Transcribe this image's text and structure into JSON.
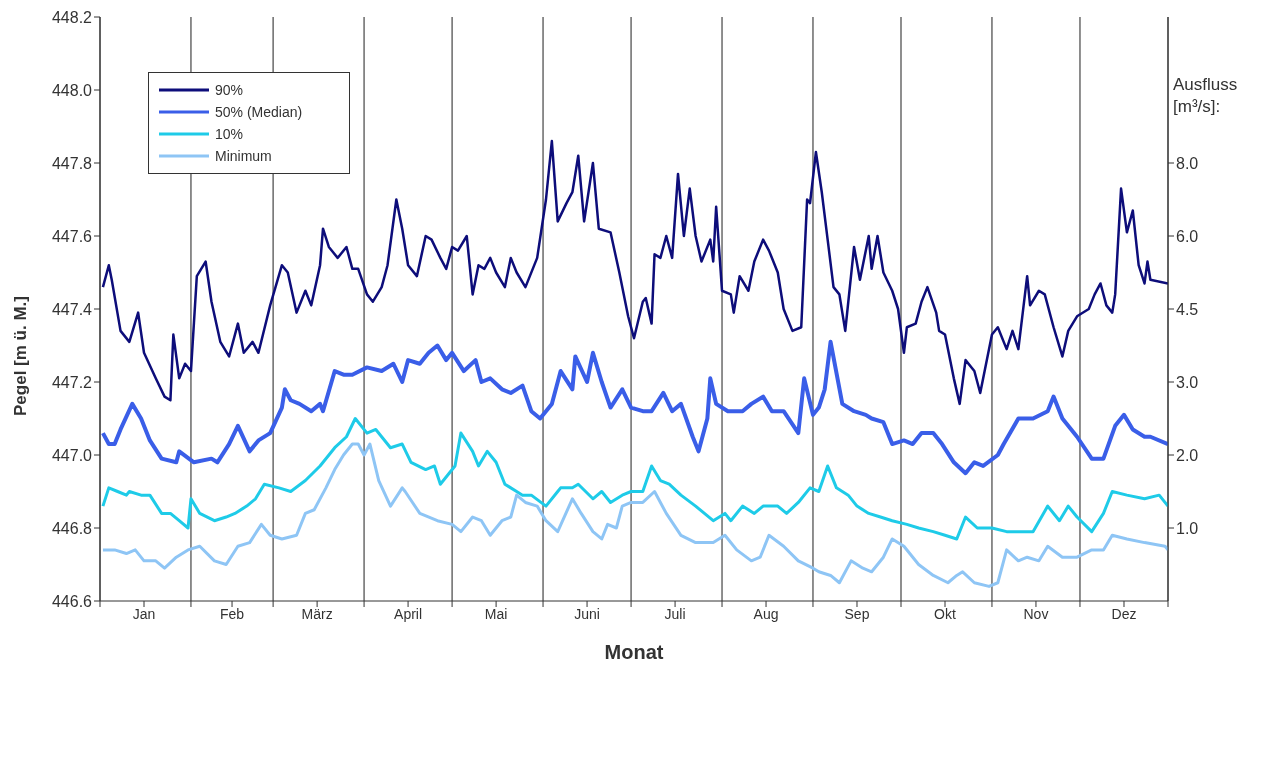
{
  "chart_data": {
    "type": "line",
    "xlabel": "Monat",
    "ylabel": "Pegel [m ü. M.]",
    "y2label": "Ausfluss [m³/s]:",
    "xlim": [
      "--01-01",
      "--12-31"
    ],
    "xticks": [
      {
        "value": "--01-01",
        "label": null
      },
      {
        "value": "--01-16",
        "label": "Jan"
      },
      {
        "value": "--02-01",
        "label": null
      },
      {
        "value": "--02-15",
        "label": "Feb"
      },
      {
        "value": "--03-01",
        "label": null
      },
      {
        "value": "--03-16",
        "label": "März"
      },
      {
        "value": "--04-01",
        "label": null
      },
      {
        "value": "--04-16",
        "label": "April"
      },
      {
        "value": "--05-01",
        "label": null
      },
      {
        "value": "--05-16",
        "label": "Mai"
      },
      {
        "value": "--06-01",
        "label": null
      },
      {
        "value": "--06-16",
        "label": "Juni"
      },
      {
        "value": "--07-01",
        "label": null
      },
      {
        "value": "--07-16",
        "label": "Juli"
      },
      {
        "value": "--08-01",
        "label": null
      },
      {
        "value": "--08-16",
        "label": "Aug"
      },
      {
        "value": "--09-01",
        "label": null
      },
      {
        "value": "--09-16",
        "label": "Sep"
      },
      {
        "value": "--10-01",
        "label": null
      },
      {
        "value": "--10-16",
        "label": "Okt"
      },
      {
        "value": "--11-01",
        "label": null
      },
      {
        "value": "--11-16",
        "label": "Nov"
      },
      {
        "value": "--12-01",
        "label": null
      },
      {
        "value": "--12-16",
        "label": "Dez"
      },
      {
        "value": "--12-31",
        "label": null
      }
    ],
    "ylim": [
      446.6,
      448.2
    ],
    "yticks": [
      446.6,
      446.8,
      {
        "value": 447,
        "label": "447.0"
      },
      447.2,
      447.4,
      447.6,
      447.8,
      {
        "value": 448,
        "label": "448.0"
      },
      448.2
    ],
    "annotations": [
      "1.0",
      "2.0",
      "3.0",
      "4.5",
      "6.0",
      "8.0"
    ],
    "grid": true,
    "legend": "top left",
    "series": [
      {
        "name": "90%",
        "color": "#0d0d7a",
        "x": [
          "--01-02",
          "--01-04",
          "--01-05",
          "--01-08",
          "--01-11",
          "--01-14",
          "--01-16",
          "--01-20",
          "--01-23",
          "--01-25",
          "--01-26",
          "--01-28",
          "--01-30",
          "--02-01",
          "--02-03",
          "--02-06",
          "--02-08",
          "--02-11",
          "--02-14",
          "--02-17",
          "--02-19",
          "--02-22",
          "--02-24",
          "--02-28",
          "--03-04",
          "--03-06",
          "--03-09",
          "--03-12",
          "--03-14",
          "--03-17",
          "--03-18",
          "--03-20",
          "--03-23",
          "--03-26",
          "--03-28",
          "--03-30",
          "--04-02",
          "--04-04",
          "--04-07",
          "--04-09",
          "--04-12",
          "--04-14",
          "--04-16",
          "--04-19",
          "--04-22",
          "--04-24",
          "--04-27",
          "--04-29",
          "--05-01",
          "--05-03",
          "--05-06",
          "--05-08",
          "--05-10",
          "--05-12",
          "--05-14",
          "--05-16",
          "--05-19",
          "--05-21",
          "--05-23",
          "--05-26",
          "--05-30",
          "--06-02",
          "--06-04",
          "--06-06",
          "--06-09",
          "--06-11",
          "--06-13",
          "--06-15",
          "--06-18",
          "--06-20",
          "--06-24",
          "--06-27",
          "--06-30",
          "--07-02",
          "--07-05",
          "--07-06",
          "--07-08",
          "--07-09",
          "--07-11",
          "--07-13",
          "--07-15",
          "--07-17",
          "--07-19",
          "--07-21",
          "--07-23",
          "--07-25",
          "--07-28",
          "--07-29",
          "--07-30",
          "--08-01",
          "--08-04",
          "--08-05",
          "--08-07",
          "--08-10",
          "--08-12",
          "--08-15",
          "--08-17",
          "--08-20",
          "--08-22",
          "--08-25",
          "--08-28",
          "--08-30",
          "--08-31",
          "--09-02",
          "--09-04",
          "--09-06",
          "--09-08",
          "--09-10",
          "--09-12",
          "--09-15",
          "--09-17",
          "--09-20",
          "--09-21",
          "--09-23",
          "--09-25",
          "--09-28",
          "--09-30",
          "--10-02",
          "--10-03",
          "--10-06",
          "--10-08",
          "--10-10",
          "--10-13",
          "--10-14",
          "--10-16",
          "--10-19",
          "--10-21",
          "--10-23",
          "--10-26",
          "--10-28",
          "--11-01",
          "--11-03",
          "--11-06",
          "--11-08",
          "--11-10",
          "--11-13",
          "--11-14",
          "--11-17",
          "--11-19",
          "--11-22",
          "--11-25",
          "--11-27",
          "--11-30",
          "--12-04",
          "--12-06",
          "--12-08",
          "--12-10",
          "--12-12",
          "--12-13",
          "--12-15",
          "--12-17",
          "--12-19",
          "--12-21",
          "--12-23",
          "--12-24",
          "--12-25",
          "--12-31"
        ],
        "values": [
          447.46,
          447.52,
          447.48,
          447.34,
          447.31,
          447.39,
          447.28,
          447.21,
          447.16,
          447.15,
          447.33,
          447.21,
          447.25,
          447.23,
          447.49,
          447.53,
          447.42,
          447.31,
          447.27,
          447.36,
          447.28,
          447.31,
          447.28,
          447.41,
          447.52,
          447.5,
          447.39,
          447.45,
          447.41,
          447.52,
          447.62,
          447.57,
          447.54,
          447.57,
          447.51,
          447.51,
          447.44,
          447.42,
          447.46,
          447.52,
          447.7,
          447.62,
          447.52,
          447.49,
          447.6,
          447.59,
          447.54,
          447.51,
          447.57,
          447.56,
          447.6,
          447.44,
          447.52,
          447.51,
          447.54,
          447.5,
          447.46,
          447.54,
          447.5,
          447.46,
          447.54,
          447.7,
          447.86,
          447.64,
          447.69,
          447.72,
          447.82,
          447.64,
          447.8,
          447.62,
          447.61,
          447.5,
          447.38,
          447.32,
          447.42,
          447.43,
          447.36,
          447.55,
          447.54,
          447.6,
          447.54,
          447.77,
          447.6,
          447.73,
          447.6,
          447.53,
          447.59,
          447.53,
          447.68,
          447.45,
          447.44,
          447.39,
          447.49,
          447.45,
          447.53,
          447.59,
          447.56,
          447.5,
          447.4,
          447.34,
          447.35,
          447.7,
          447.69,
          447.83,
          447.72,
          447.59,
          447.46,
          447.44,
          447.34,
          447.57,
          447.48,
          447.6,
          447.51,
          447.6,
          447.5,
          447.45,
          447.4,
          447.28,
          447.35,
          447.36,
          447.42,
          447.46,
          447.39,
          447.34,
          447.33,
          447.21,
          447.14,
          447.26,
          447.23,
          447.17,
          447.33,
          447.35,
          447.29,
          447.34,
          447.29,
          447.49,
          447.41,
          447.45,
          447.44,
          447.35,
          447.27,
          447.34,
          447.38,
          447.4,
          447.44,
          447.47,
          447.41,
          447.39,
          447.44,
          447.73,
          447.61,
          447.67,
          447.52,
          447.47,
          447.53,
          447.48,
          447.47
        ]
      },
      {
        "name": "50% (Median)",
        "color": "#3a5ee8",
        "x": [
          "--01-02",
          "--01-04",
          "--01-06",
          "--01-08",
          "--01-12",
          "--01-15",
          "--01-18",
          "--01-22",
          "--01-27",
          "--01-28",
          "--02-02",
          "--02-08",
          "--02-10",
          "--02-14",
          "--02-17",
          "--02-21",
          "--02-24",
          "--02-28",
          "--03-04",
          "--03-05",
          "--03-07",
          "--03-10",
          "--03-14",
          "--03-17",
          "--03-18",
          "--03-22",
          "--03-25",
          "--03-28",
          "--04-02",
          "--04-07",
          "--04-11",
          "--04-14",
          "--04-16",
          "--04-20",
          "--04-23",
          "--04-26",
          "--04-29",
          "--05-01",
          "--05-05",
          "--05-09",
          "--05-11",
          "--05-14",
          "--05-18",
          "--05-21",
          "--05-25",
          "--05-28",
          "--05-31",
          "--06-04",
          "--06-07",
          "--06-11",
          "--06-12",
          "--06-16",
          "--06-18",
          "--06-21",
          "--06-24",
          "--06-28",
          "--07-01",
          "--07-05",
          "--07-08",
          "--07-12",
          "--07-15",
          "--07-18",
          "--07-22",
          "--07-24",
          "--07-27",
          "--07-28",
          "--07-30",
          "--08-03",
          "--08-08",
          "--08-11",
          "--08-15",
          "--08-18",
          "--08-22",
          "--08-27",
          "--08-29",
          "--09-01",
          "--09-03",
          "--09-05",
          "--09-07",
          "--09-11",
          "--09-15",
          "--09-19",
          "--09-21",
          "--09-25",
          "--09-28",
          "--10-02",
          "--10-05",
          "--10-08",
          "--10-12",
          "--10-15",
          "--10-19",
          "--10-23",
          "--10-26",
          "--10-29",
          "--11-03",
          "--11-05",
          "--11-10",
          "--11-15",
          "--11-20",
          "--11-22",
          "--11-25",
          "--11-30",
          "--12-05",
          "--12-09",
          "--12-13",
          "--12-16",
          "--12-19",
          "--12-23",
          "--12-25",
          "--12-31"
        ],
        "values": [
          447.06,
          447.03,
          447.03,
          447.07,
          447.14,
          447.1,
          447.04,
          446.99,
          446.98,
          447.01,
          446.98,
          446.99,
          446.98,
          447.03,
          447.08,
          447.01,
          447.04,
          447.06,
          447.13,
          447.18,
          447.15,
          447.14,
          447.12,
          447.14,
          447.12,
          447.23,
          447.22,
          447.22,
          447.24,
          447.23,
          447.25,
          447.2,
          447.26,
          447.25,
          447.28,
          447.3,
          447.26,
          447.28,
          447.23,
          447.26,
          447.2,
          447.21,
          447.18,
          447.17,
          447.19,
          447.12,
          447.1,
          447.14,
          447.23,
          447.18,
          447.27,
          447.2,
          447.28,
          447.2,
          447.13,
          447.18,
          447.13,
          447.12,
          447.12,
          447.17,
          447.12,
          447.14,
          447.05,
          447.01,
          447.1,
          447.21,
          447.14,
          447.12,
          447.12,
          447.14,
          447.16,
          447.12,
          447.12,
          447.06,
          447.21,
          447.11,
          447.13,
          447.18,
          447.31,
          447.14,
          447.12,
          447.11,
          447.1,
          447.09,
          447.03,
          447.04,
          447.03,
          447.06,
          447.06,
          447.03,
          446.98,
          446.95,
          446.98,
          446.97,
          447,
          447.03,
          447.1,
          447.1,
          447.12,
          447.16,
          447.1,
          447.05,
          446.99,
          446.99,
          447.08,
          447.11,
          447.07,
          447.05,
          447.05,
          447.03
        ]
      },
      {
        "name": "10%",
        "color": "#1ecbe8",
        "x": [
          "--01-02",
          "--01-04",
          "--01-07",
          "--01-10",
          "--01-11",
          "--01-15",
          "--01-18",
          "--01-22",
          "--01-25",
          "--01-28",
          "--01-31",
          "--02-01",
          "--02-04",
          "--02-09",
          "--02-13",
          "--02-16",
          "--02-20",
          "--02-23",
          "--02-26",
          "--03-03",
          "--03-07",
          "--03-12",
          "--03-17",
          "--03-22",
          "--03-26",
          "--03-29",
          "--04-02",
          "--04-05",
          "--04-10",
          "--04-14",
          "--04-17",
          "--04-22",
          "--04-25",
          "--04-27",
          "--04-30",
          "--05-02",
          "--05-04",
          "--05-08",
          "--05-10",
          "--05-13",
          "--05-16",
          "--05-19",
          "--05-23",
          "--05-25",
          "--05-28",
          "--06-02",
          "--06-06",
          "--06-07",
          "--06-11",
          "--06-13",
          "--06-18",
          "--06-21",
          "--06-24",
          "--06-28",
          "--07-01",
          "--07-05",
          "--07-08",
          "--07-11",
          "--07-14",
          "--07-18",
          "--07-23",
          "--07-29",
          "--08-02",
          "--08-04",
          "--08-08",
          "--08-12",
          "--08-15",
          "--08-20",
          "--08-23",
          "--08-27",
          "--08-31",
          "--09-03",
          "--09-06",
          "--09-09",
          "--09-13",
          "--09-16",
          "--09-20",
          "--09-24",
          "--09-28",
          "--10-03",
          "--10-07",
          "--10-12",
          "--10-16",
          "--10-20",
          "--10-23",
          "--10-27",
          "--11-01",
          "--11-06",
          "--11-12",
          "--11-15",
          "--11-20",
          "--11-24",
          "--11-27",
          "--11-30",
          "--12-05",
          "--12-09",
          "--12-12",
          "--12-17",
          "--12-23",
          "--12-28",
          "--12-31"
        ],
        "values": [
          446.86,
          446.91,
          446.9,
          446.89,
          446.9,
          446.89,
          446.89,
          446.84,
          446.84,
          446.82,
          446.8,
          446.88,
          446.84,
          446.82,
          446.83,
          446.84,
          446.86,
          446.88,
          446.92,
          446.91,
          446.9,
          446.93,
          446.97,
          447.02,
          447.05,
          447.1,
          447.06,
          447.07,
          447.02,
          447.03,
          446.98,
          446.96,
          446.97,
          446.92,
          446.95,
          446.97,
          447.06,
          447.01,
          446.97,
          447.01,
          446.98,
          446.92,
          446.9,
          446.89,
          446.89,
          446.86,
          446.9,
          446.91,
          446.91,
          446.92,
          446.88,
          446.9,
          446.87,
          446.89,
          446.9,
          446.9,
          446.97,
          446.93,
          446.92,
          446.89,
          446.86,
          446.82,
          446.84,
          446.82,
          446.86,
          446.84,
          446.86,
          446.86,
          446.84,
          446.87,
          446.91,
          446.9,
          446.97,
          446.91,
          446.89,
          446.86,
          446.84,
          446.83,
          446.82,
          446.81,
          446.8,
          446.79,
          446.78,
          446.77,
          446.83,
          446.8,
          446.8,
          446.79,
          446.79,
          446.79,
          446.86,
          446.82,
          446.86,
          446.83,
          446.79,
          446.84,
          446.9,
          446.89,
          446.88,
          446.89,
          446.86
        ]
      },
      {
        "name": "Minimum",
        "color": "#8ec5f5",
        "x": [
          "--01-02",
          "--01-06",
          "--01-10",
          "--01-13",
          "--01-16",
          "--01-20",
          "--01-23",
          "--01-27",
          "--01-31",
          "--02-04",
          "--02-09",
          "--02-13",
          "--02-17",
          "--02-21",
          "--02-25",
          "--02-28",
          "--03-04",
          "--03-09",
          "--03-12",
          "--03-15",
          "--03-19",
          "--03-22",
          "--03-25",
          "--03-28",
          "--03-30",
          "--04-01",
          "--04-03",
          "--04-06",
          "--04-10",
          "--04-14",
          "--04-15",
          "--04-20",
          "--04-26",
          "--05-01",
          "--05-04",
          "--05-08",
          "--05-11",
          "--05-14",
          "--05-18",
          "--05-21",
          "--05-23",
          "--05-26",
          "--05-30",
          "--06-02",
          "--06-06",
          "--06-11",
          "--06-14",
          "--06-18",
          "--06-21",
          "--06-23",
          "--06-26",
          "--06-28",
          "--07-01",
          "--07-05",
          "--07-09",
          "--07-13",
          "--07-18",
          "--07-23",
          "--07-29",
          "--08-02",
          "--08-06",
          "--08-11",
          "--08-14",
          "--08-17",
          "--08-22",
          "--08-27",
          "--09-01",
          "--09-03",
          "--09-07",
          "--09-10",
          "--09-14",
          "--09-18",
          "--09-21",
          "--09-25",
          "--09-28",
          "--10-02",
          "--10-07",
          "--10-12",
          "--10-17",
          "--10-20",
          "--10-22",
          "--10-26",
          "--10-31",
          "--11-03",
          "--11-06",
          "--11-10",
          "--11-13",
          "--11-17",
          "--11-20",
          "--11-25",
          "--11-30",
          "--12-05",
          "--12-09",
          "--12-12",
          "--12-17",
          "--12-23",
          "--12-30",
          "--12-31"
        ],
        "values": [
          446.74,
          446.74,
          446.73,
          446.74,
          446.71,
          446.71,
          446.69,
          446.72,
          446.74,
          446.75,
          446.71,
          446.7,
          446.75,
          446.76,
          446.81,
          446.78,
          446.77,
          446.78,
          446.84,
          446.85,
          446.91,
          446.96,
          447,
          447.03,
          447.03,
          447,
          447.03,
          446.93,
          446.86,
          446.91,
          446.9,
          446.84,
          446.82,
          446.81,
          446.79,
          446.83,
          446.82,
          446.78,
          446.82,
          446.83,
          446.89,
          446.87,
          446.86,
          446.82,
          446.79,
          446.88,
          446.84,
          446.79,
          446.77,
          446.81,
          446.8,
          446.86,
          446.87,
          446.87,
          446.9,
          446.84,
          446.78,
          446.76,
          446.76,
          446.78,
          446.74,
          446.71,
          446.72,
          446.78,
          446.75,
          446.71,
          446.69,
          446.68,
          446.67,
          446.65,
          446.71,
          446.69,
          446.68,
          446.72,
          446.77,
          446.75,
          446.7,
          446.67,
          446.65,
          446.67,
          446.68,
          446.65,
          446.64,
          446.65,
          446.74,
          446.71,
          446.72,
          446.71,
          446.75,
          446.72,
          446.72,
          446.74,
          446.74,
          446.78,
          446.77,
          446.76,
          446.75,
          446.74
        ]
      }
    ]
  }
}
